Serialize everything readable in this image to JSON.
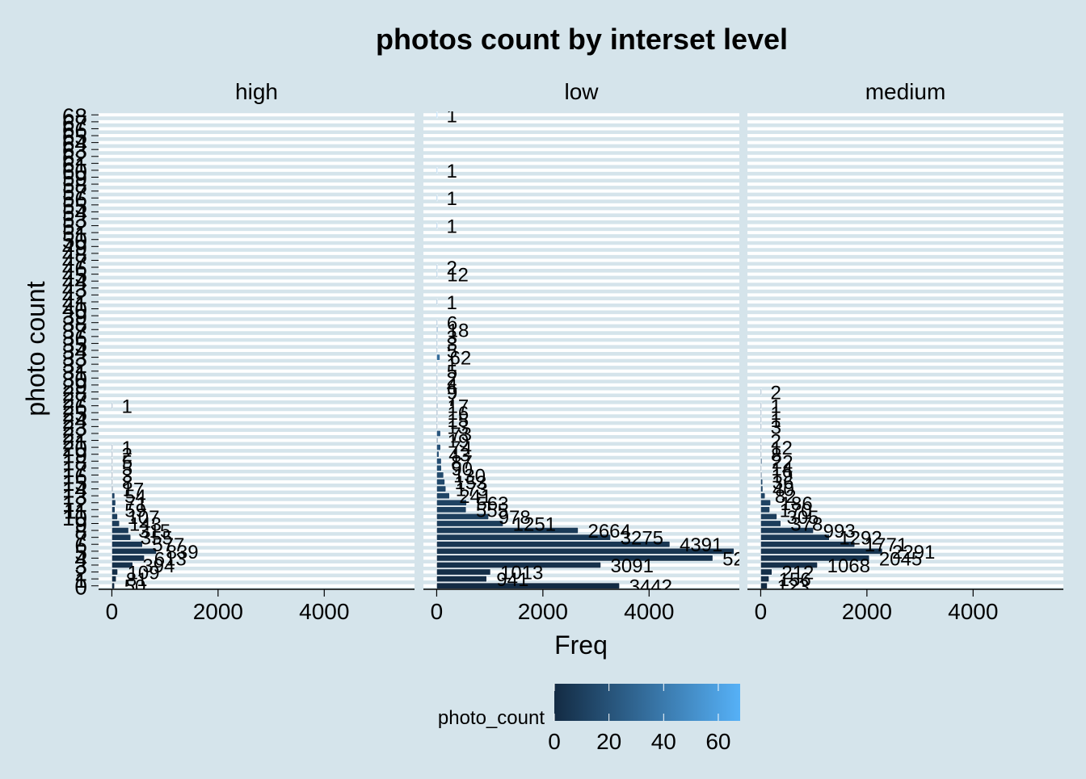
{
  "chart_data": {
    "type": "bar",
    "orientation": "horizontal",
    "title": "photos count by interset level",
    "xlabel": "Freq",
    "ylabel": "photo count",
    "xlim": [
      -250,
      5700
    ],
    "x_ticks": [
      0,
      2000,
      4000
    ],
    "x_tick_labels": [
      "0",
      "2000",
      "4000"
    ],
    "y_categories": [
      "0",
      "1",
      "2",
      "3",
      "4",
      "5",
      "6",
      "7",
      "8",
      "9",
      "10",
      "11",
      "12",
      "13",
      "14",
      "15",
      "16",
      "17",
      "18",
      "19",
      "20",
      "21",
      "22",
      "23",
      "24",
      "25",
      "26",
      "27",
      "28",
      "29",
      "30",
      "31",
      "32",
      "33",
      "34",
      "35",
      "36",
      "37",
      "38",
      "39",
      "40",
      "41",
      "42",
      "43",
      "44",
      "45",
      "46",
      "47",
      "48",
      "49",
      "50",
      "51",
      "52",
      "53",
      "54",
      "55",
      "56",
      "57",
      "58",
      "59",
      "60",
      "61",
      "62",
      "63",
      "64",
      "65",
      "66",
      "67",
      "68"
    ],
    "background": "#d5e4eb",
    "gridline_color": "#ffffff",
    "grid": true,
    "panels": [
      {
        "name": "high",
        "bars": [
          {
            "category": 0,
            "value": 50
          },
          {
            "category": 1,
            "value": 81
          },
          {
            "category": 2,
            "value": 109
          },
          {
            "category": 3,
            "value": 394
          },
          {
            "category": 4,
            "value": 613
          },
          {
            "category": 5,
            "value": 839
          },
          {
            "category": 6,
            "value": 577
          },
          {
            "category": 7,
            "value": 355
          },
          {
            "category": 8,
            "value": 315
          },
          {
            "category": 9,
            "value": 143
          },
          {
            "category": 10,
            "value": 107
          },
          {
            "category": 11,
            "value": 59
          },
          {
            "category": 12,
            "value": 71
          },
          {
            "category": 13,
            "value": 54
          },
          {
            "category": 14,
            "value": 17
          },
          {
            "category": 15,
            "value": 8
          },
          {
            "category": 16,
            "value": 3
          },
          {
            "category": 17,
            "value": 5
          },
          {
            "category": 18,
            "value": 5
          },
          {
            "category": 19,
            "value": 2
          },
          {
            "category": 20,
            "value": 1
          },
          {
            "category": 26,
            "value": 1
          }
        ]
      },
      {
        "name": "low",
        "bars": [
          {
            "category": 0,
            "value": 3442
          },
          {
            "category": 1,
            "value": 941
          },
          {
            "category": 2,
            "value": 1013
          },
          {
            "category": 3,
            "value": 3091
          },
          {
            "category": 4,
            "value": 5200
          },
          {
            "category": 5,
            "value": 5600
          },
          {
            "category": 6,
            "value": 4391
          },
          {
            "category": 7,
            "value": 3275
          },
          {
            "category": 8,
            "value": 2664
          },
          {
            "category": 9,
            "value": 1251
          },
          {
            "category": 10,
            "value": 978
          },
          {
            "category": 11,
            "value": 555
          },
          {
            "category": 12,
            "value": 563
          },
          {
            "category": 13,
            "value": 241
          },
          {
            "category": 14,
            "value": 173
          },
          {
            "category": 15,
            "value": 153
          },
          {
            "category": 16,
            "value": 130
          },
          {
            "category": 17,
            "value": 90
          },
          {
            "category": 18,
            "value": 87
          },
          {
            "category": 19,
            "value": 43
          },
          {
            "category": 20,
            "value": 74
          },
          {
            "category": 21,
            "value": 19
          },
          {
            "category": 22,
            "value": 73
          },
          {
            "category": 23,
            "value": 13
          },
          {
            "category": 24,
            "value": 15
          },
          {
            "category": 25,
            "value": 16
          },
          {
            "category": 26,
            "value": 17
          },
          {
            "category": 27,
            "value": 7
          },
          {
            "category": 28,
            "value": 9
          },
          {
            "category": 29,
            "value": 4
          },
          {
            "category": 30,
            "value": 2
          },
          {
            "category": 31,
            "value": 5
          },
          {
            "category": 32,
            "value": 1
          },
          {
            "category": 33,
            "value": 62
          },
          {
            "category": 34,
            "value": 5
          },
          {
            "category": 35,
            "value": 3
          },
          {
            "category": 36,
            "value": 3
          },
          {
            "category": 37,
            "value": 18
          },
          {
            "category": 38,
            "value": 6
          },
          {
            "category": 41,
            "value": 1
          },
          {
            "category": 45,
            "value": 12
          },
          {
            "category": 46,
            "value": 2
          },
          {
            "category": 52,
            "value": 1
          },
          {
            "category": 56,
            "value": 1
          },
          {
            "category": 60,
            "value": 1
          },
          {
            "category": 68,
            "value": 1
          }
        ]
      },
      {
        "name": "medium",
        "bars": [
          {
            "category": 0,
            "value": 123
          },
          {
            "category": 1,
            "value": 156
          },
          {
            "category": 2,
            "value": 212
          },
          {
            "category": 3,
            "value": 1068
          },
          {
            "category": 4,
            "value": 2045
          },
          {
            "category": 5,
            "value": 2291
          },
          {
            "category": 6,
            "value": 1771
          },
          {
            "category": 7,
            "value": 1292
          },
          {
            "category": 8,
            "value": 993
          },
          {
            "category": 9,
            "value": 378
          },
          {
            "category": 10,
            "value": 305
          },
          {
            "category": 11,
            "value": 170
          },
          {
            "category": 12,
            "value": 186
          },
          {
            "category": 13,
            "value": 82
          },
          {
            "category": 14,
            "value": 40
          },
          {
            "category": 15,
            "value": 36
          },
          {
            "category": 16,
            "value": 19
          },
          {
            "category": 17,
            "value": 14
          },
          {
            "category": 18,
            "value": 22
          },
          {
            "category": 19,
            "value": 8
          },
          {
            "category": 20,
            "value": 12
          },
          {
            "category": 21,
            "value": 2
          },
          {
            "category": 23,
            "value": 3
          },
          {
            "category": 24,
            "value": 1
          },
          {
            "category": 25,
            "value": 1
          },
          {
            "category": 26,
            "value": 1
          },
          {
            "category": 28,
            "value": 2
          }
        ]
      }
    ],
    "legend": {
      "title": "photo_count",
      "position": "bottom",
      "type": "gradient",
      "low_color": "#132b43",
      "high_color": "#56b1f7",
      "range": [
        0,
        68
      ],
      "ticks": [
        0,
        20,
        40,
        60
      ],
      "tick_labels": [
        "0",
        "20",
        "40",
        "60"
      ]
    }
  }
}
